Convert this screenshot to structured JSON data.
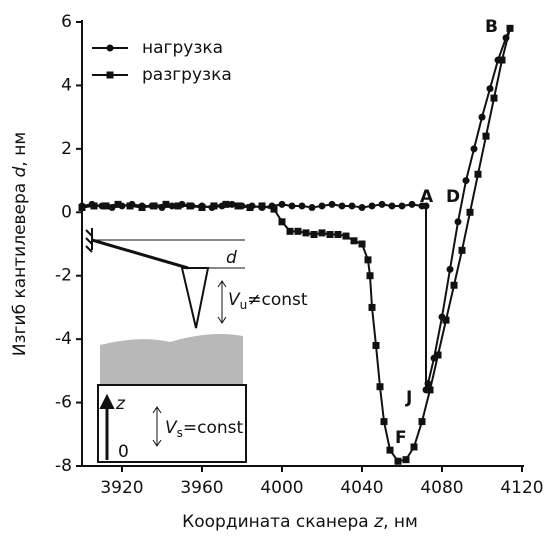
{
  "chart_data": {
    "type": "line",
    "x_label": [
      "Координата сканера ",
      "z",
      ", нм"
    ],
    "y_label": [
      "Изгиб кантилевера ",
      "d",
      ", нм"
    ],
    "xlim": [
      3900,
      4120
    ],
    "xticks": [
      3920,
      3960,
      4000,
      4040,
      4080,
      4120
    ],
    "ylim": [
      -8,
      6
    ],
    "yticks": [
      -8,
      -6,
      -4,
      -2,
      0,
      2,
      4,
      6
    ],
    "grid": false,
    "legend": "upper left",
    "series": [
      {
        "name": "нагрузка",
        "color": "#111111",
        "marker": "circle",
        "x": [
          3900,
          3905,
          3910,
          3915,
          3920,
          3925,
          3930,
          3935,
          3940,
          3945,
          3950,
          3955,
          3960,
          3965,
          3970,
          3975,
          3980,
          3985,
          3990,
          3995,
          4000,
          4005,
          4010,
          4015,
          4020,
          4025,
          4030,
          4035,
          4040,
          4045,
          4050,
          4055,
          4060,
          4065,
          4070,
          4072,
          4072,
          4073,
          4076,
          4080,
          4084,
          4088,
          4092,
          4096,
          4100,
          4104,
          4108,
          4112,
          4114
        ],
        "values": [
          0.2,
          0.25,
          0.2,
          0.15,
          0.2,
          0.25,
          0.2,
          0.2,
          0.15,
          0.2,
          0.25,
          0.2,
          0.2,
          0.15,
          0.2,
          0.25,
          0.2,
          0.2,
          0.15,
          0.2,
          0.25,
          0.2,
          0.2,
          0.15,
          0.2,
          0.25,
          0.2,
          0.2,
          0.15,
          0.2,
          0.25,
          0.2,
          0.2,
          0.25,
          0.2,
          0.2,
          -5.6,
          -5.4,
          -4.6,
          -3.3,
          -1.8,
          -0.3,
          1.0,
          2.0,
          3.0,
          3.9,
          4.8,
          5.5,
          5.8
        ]
      },
      {
        "name": "разгрузка",
        "color": "#111111",
        "marker": "square",
        "x": [
          4114,
          4110,
          4106,
          4102,
          4098,
          4094,
          4090,
          4086,
          4082,
          4078,
          4074,
          4070,
          4066,
          4062,
          4058,
          4054,
          4051,
          4049,
          4047,
          4045,
          4044,
          4043,
          4040,
          4036,
          4032,
          4028,
          4024,
          4020,
          4016,
          4012,
          4008,
          4004,
          4000,
          3996,
          3990,
          3984,
          3978,
          3972,
          3966,
          3960,
          3954,
          3948,
          3942,
          3936,
          3930,
          3924,
          3918,
          3912,
          3906,
          3900
        ],
        "values": [
          5.8,
          4.8,
          3.6,
          2.4,
          1.2,
          0.0,
          -1.2,
          -2.3,
          -3.4,
          -4.5,
          -5.6,
          -6.6,
          -7.4,
          -7.8,
          -7.85,
          -7.5,
          -6.6,
          -5.5,
          -4.2,
          -3.0,
          -2.0,
          -1.5,
          -1.0,
          -0.9,
          -0.75,
          -0.7,
          -0.7,
          -0.65,
          -0.7,
          -0.65,
          -0.6,
          -0.6,
          -0.3,
          0.1,
          0.2,
          0.15,
          0.2,
          0.25,
          0.2,
          0.15,
          0.2,
          0.2,
          0.25,
          0.2,
          0.15,
          0.2,
          0.25,
          0.2,
          0.2,
          0.15
        ]
      }
    ],
    "annotations": [
      "A",
      "B",
      "D",
      "F",
      "J"
    ],
    "inset": {
      "d": "d",
      "vu": "V",
      "vu_sub": "u",
      "vu_rest": "≠const",
      "z": "z",
      "zero": "0",
      "vs": "V",
      "vs_sub": "s",
      "vs_rest": "=const"
    }
  }
}
